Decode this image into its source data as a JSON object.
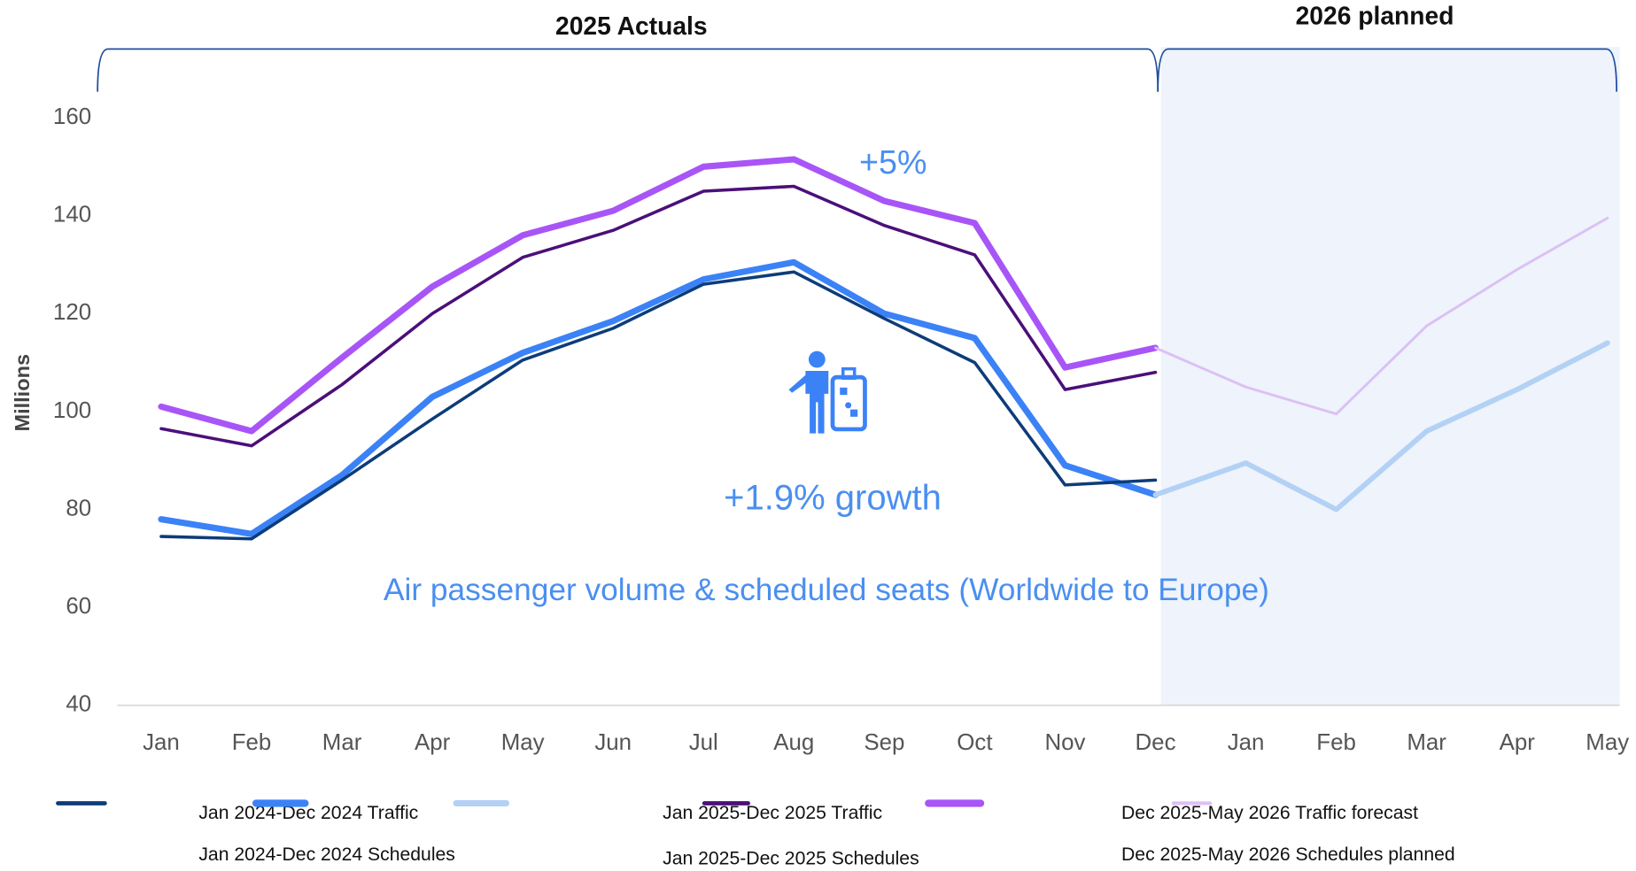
{
  "chart_data": {
    "type": "line",
    "title": "Air passenger volume & scheduled seats (Worldwide to Europe)",
    "y_label": "Millions",
    "sections": [
      "2025 Actuals",
      "2026 planned"
    ],
    "annotations": [
      "+5%",
      "+1.9% growth"
    ],
    "categories": [
      "Jan",
      "Feb",
      "Mar",
      "Apr",
      "May",
      "Jun",
      "Jul",
      "Aug",
      "Sep",
      "Oct",
      "Nov",
      "Dec",
      "Jan",
      "Feb",
      "Mar",
      "Apr",
      "May"
    ],
    "ylim": [
      40,
      160
    ],
    "yticks": [
      40,
      60,
      80,
      100,
      120,
      140,
      160
    ],
    "grid": false,
    "legend": "bottom",
    "series": [
      {
        "name": "Jan 2024-Dec 2024 Traffic",
        "color": "#0d3c7a",
        "values": [
          74.5,
          74,
          86,
          98.5,
          110.5,
          117,
          126,
          128.5,
          119,
          110,
          85,
          86,
          null,
          null,
          null,
          null,
          null
        ]
      },
      {
        "name": "Jan 2024-Dec 2024 Schedules",
        "color": "#3b82f6",
        "values": [
          78,
          75,
          87,
          103,
          112,
          118.5,
          127,
          130.5,
          120,
          115,
          89,
          83,
          null,
          null,
          null,
          null,
          null
        ]
      },
      {
        "name": "Jan 2025-Dec 2025 Traffic",
        "color": "#4b0f7a",
        "values": [
          96.5,
          93,
          105.5,
          120,
          131.5,
          137,
          145,
          146,
          138,
          132,
          104.5,
          108,
          null,
          null,
          null,
          null,
          null
        ]
      },
      {
        "name": "Jan 2025-Dec 2025 Schedules",
        "color": "#a855f7",
        "values": [
          101,
          96,
          111,
          125.5,
          136,
          141,
          150,
          151.5,
          143,
          138.5,
          109,
          113,
          null,
          null,
          null,
          null,
          null
        ]
      },
      {
        "name": "Dec 2025-May 2026 Traffic forecast",
        "color": "#dcc0f4",
        "values": [
          null,
          null,
          null,
          null,
          null,
          null,
          null,
          null,
          null,
          null,
          null,
          113,
          105,
          99.5,
          117.5,
          129,
          139.5
        ]
      },
      {
        "name": "Dec 2025-May 2026 Schedules planned",
        "color": "#b3d1f5",
        "values": [
          null,
          null,
          null,
          null,
          null,
          null,
          null,
          null,
          null,
          null,
          null,
          83,
          89.5,
          80,
          96,
          104.5,
          114
        ]
      }
    ]
  }
}
